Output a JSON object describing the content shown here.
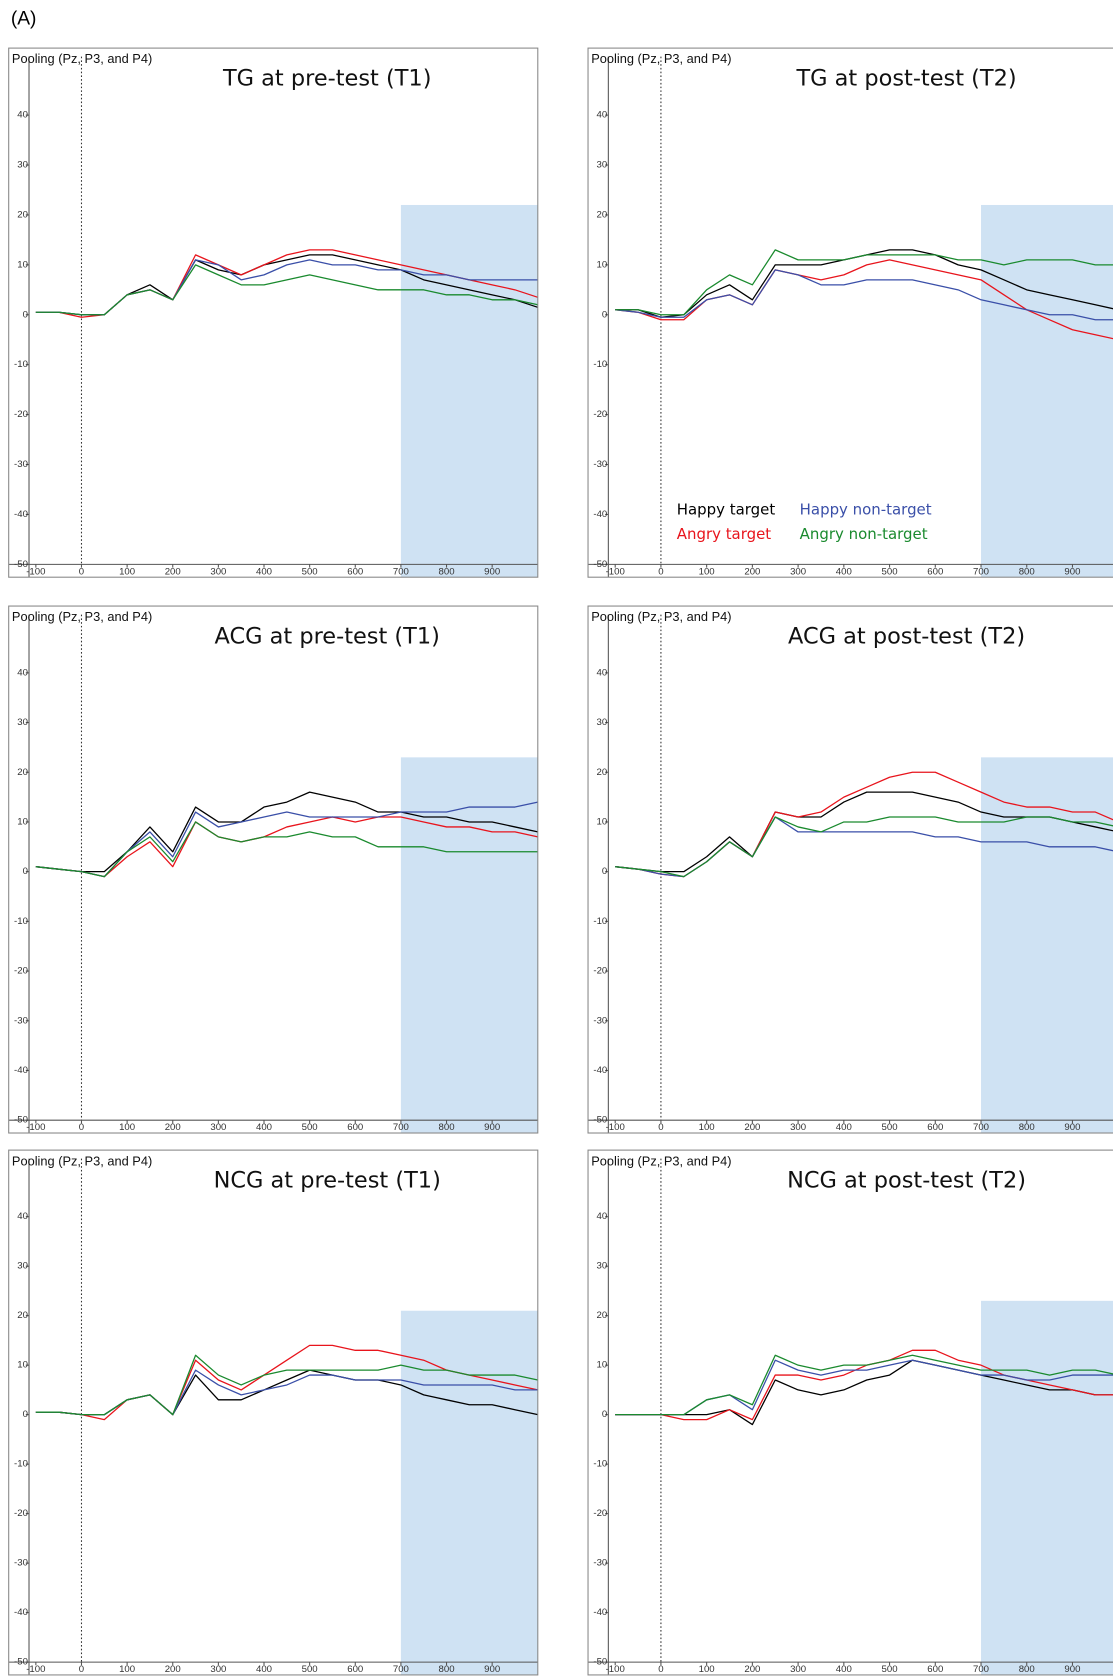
{
  "label": "(A)",
  "chart_data": [
    {
      "type": "line",
      "title": "TG at pre-test (T1)",
      "ylabel": "Pooling (Pz, P3, and P4)",
      "x": [
        -100,
        -50,
        0,
        50,
        100,
        150,
        200,
        250,
        300,
        350,
        400,
        450,
        500,
        550,
        600,
        650,
        700,
        750,
        800,
        850,
        900,
        950,
        1000
      ],
      "xlim": [
        -115,
        1000
      ],
      "ylim": [
        -50,
        50
      ],
      "xticks": [
        -100,
        0,
        100,
        200,
        300,
        400,
        500,
        600,
        700,
        800,
        900
      ],
      "yticks": [
        -50,
        -40,
        -30,
        -20,
        -10,
        0,
        10,
        20,
        30,
        40
      ],
      "shaded_window": {
        "x": [
          700,
          1000
        ],
        "top": 22,
        "color": "#cfe2f3"
      },
      "series": [
        {
          "name": "Happy target",
          "color": "#000000",
          "values": [
            0.5,
            0.5,
            0,
            0,
            4,
            6,
            3,
            11,
            9,
            8,
            10,
            11,
            12,
            12,
            11,
            10,
            9,
            7,
            6,
            5,
            4,
            3,
            1.5
          ]
        },
        {
          "name": "Angry target",
          "color": "#e8141c",
          "values": [
            0.5,
            0.5,
            -0.5,
            0,
            4,
            5,
            3,
            12,
            10,
            8,
            10,
            12,
            13,
            13,
            12,
            11,
            10,
            9,
            8,
            7,
            6,
            5,
            3.5
          ]
        },
        {
          "name": "Happy non-target",
          "color": "#3a4fa8",
          "values": [
            0.5,
            0.5,
            0,
            0,
            4,
            5,
            3,
            11,
            10,
            7,
            8,
            10,
            11,
            10,
            10,
            9,
            9,
            8,
            8,
            7,
            7,
            7,
            7
          ]
        },
        {
          "name": "Angry non-target",
          "color": "#1a8a2e",
          "values": [
            0.5,
            0.5,
            0,
            0,
            4,
            5,
            3,
            10,
            8,
            6,
            6,
            7,
            8,
            7,
            6,
            5,
            5,
            5,
            4,
            4,
            3,
            3,
            2
          ]
        }
      ]
    },
    {
      "type": "line",
      "title": "TG at post-test (T2)",
      "ylabel": "Pooling (Pz, P3, and P4)",
      "x": [
        -100,
        -50,
        0,
        50,
        100,
        150,
        200,
        250,
        300,
        350,
        400,
        450,
        500,
        550,
        600,
        650,
        700,
        750,
        800,
        850,
        900,
        950,
        1000
      ],
      "xlim": [
        -115,
        1000
      ],
      "ylim": [
        -50,
        50
      ],
      "xticks": [
        -100,
        0,
        100,
        200,
        300,
        400,
        500,
        600,
        700,
        800,
        900
      ],
      "yticks": [
        -50,
        -40,
        -30,
        -20,
        -10,
        0,
        10,
        20,
        30,
        40
      ],
      "shaded_window": {
        "x": [
          700,
          1000
        ],
        "top": 22,
        "color": "#cfe2f3"
      },
      "legend": "bottom-left",
      "series": [
        {
          "name": "Happy target",
          "color": "#000000",
          "values": [
            1,
            1,
            -0.5,
            0,
            4,
            6,
            3,
            10,
            10,
            10,
            11,
            12,
            13,
            13,
            12,
            10,
            9,
            7,
            5,
            4,
            3,
            2,
            1
          ]
        },
        {
          "name": "Angry target",
          "color": "#e8141c",
          "values": [
            1,
            0.5,
            -1,
            -1,
            3,
            4,
            2,
            9,
            8,
            7,
            8,
            10,
            11,
            10,
            9,
            8,
            7,
            4,
            1,
            -1,
            -3,
            -4,
            -5
          ]
        },
        {
          "name": "Happy non-target",
          "color": "#3a4fa8",
          "values": [
            1,
            0.5,
            -0.5,
            -0.5,
            3,
            4,
            2,
            9,
            8,
            6,
            6,
            7,
            7,
            7,
            6,
            5,
            3,
            2,
            1,
            0,
            0,
            -1,
            -1
          ]
        },
        {
          "name": "Angry non-target",
          "color": "#1a8a2e",
          "values": [
            1,
            1,
            0,
            0,
            5,
            8,
            6,
            13,
            11,
            11,
            11,
            12,
            12,
            12,
            12,
            11,
            11,
            10,
            11,
            11,
            11,
            10,
            10
          ]
        }
      ]
    },
    {
      "type": "line",
      "title": "ACG at pre-test (T1)",
      "ylabel": "Pooling (Pz, P3, and P4)",
      "x": [
        -100,
        -50,
        0,
        50,
        100,
        150,
        200,
        250,
        300,
        350,
        400,
        450,
        500,
        550,
        600,
        650,
        700,
        750,
        800,
        850,
        900,
        950,
        1000
      ],
      "xlim": [
        -115,
        1000
      ],
      "ylim": [
        -50,
        50
      ],
      "xticks": [
        -100,
        0,
        100,
        200,
        300,
        400,
        500,
        600,
        700,
        800,
        900
      ],
      "yticks": [
        -50,
        -40,
        -30,
        -20,
        -10,
        0,
        10,
        20,
        30,
        40
      ],
      "shaded_window": {
        "x": [
          700,
          1000
        ],
        "top": 23,
        "color": "#cfe2f3"
      },
      "series": [
        {
          "name": "Happy target",
          "color": "#000000",
          "values": [
            1,
            0.5,
            0,
            0,
            4,
            9,
            4,
            13,
            10,
            10,
            13,
            14,
            16,
            15,
            14,
            12,
            12,
            11,
            11,
            10,
            10,
            9,
            8
          ]
        },
        {
          "name": "Angry target",
          "color": "#e8141c",
          "values": [
            1,
            0.5,
            0,
            -1,
            3,
            6,
            1,
            10,
            7,
            6,
            7,
            9,
            10,
            11,
            10,
            11,
            11,
            10,
            9,
            9,
            8,
            8,
            7
          ]
        },
        {
          "name": "Happy non-target",
          "color": "#3a4fa8",
          "values": [
            1,
            0.5,
            0,
            -1,
            4,
            8,
            3,
            12,
            9,
            10,
            11,
            12,
            11,
            11,
            11,
            11,
            12,
            12,
            12,
            13,
            13,
            13,
            14
          ]
        },
        {
          "name": "Angry non-target",
          "color": "#1a8a2e",
          "values": [
            1,
            0.5,
            0,
            -1,
            4,
            7,
            2,
            10,
            7,
            6,
            7,
            7,
            8,
            7,
            7,
            5,
            5,
            5,
            4,
            4,
            4,
            4,
            4
          ]
        }
      ]
    },
    {
      "type": "line",
      "title": "ACG at post-test (T2)",
      "ylabel": "Pooling (Pz, P3, and P4)",
      "x": [
        -100,
        -50,
        0,
        50,
        100,
        150,
        200,
        250,
        300,
        350,
        400,
        450,
        500,
        550,
        600,
        650,
        700,
        750,
        800,
        850,
        900,
        950,
        1000
      ],
      "xlim": [
        -115,
        1000
      ],
      "ylim": [
        -50,
        50
      ],
      "xticks": [
        -100,
        0,
        100,
        200,
        300,
        400,
        500,
        600,
        700,
        800,
        900
      ],
      "yticks": [
        -50,
        -40,
        -30,
        -20,
        -10,
        0,
        10,
        20,
        30,
        40
      ],
      "shaded_window": {
        "x": [
          700,
          1000
        ],
        "top": 23,
        "color": "#cfe2f3"
      },
      "series": [
        {
          "name": "Happy target",
          "color": "#000000",
          "values": [
            1,
            0.5,
            0,
            0,
            3,
            7,
            3,
            12,
            11,
            11,
            14,
            16,
            16,
            16,
            15,
            14,
            12,
            11,
            11,
            11,
            10,
            9,
            8
          ]
        },
        {
          "name": "Angry target",
          "color": "#e8141c",
          "values": [
            1,
            0.5,
            -0.5,
            -1,
            2,
            6,
            3,
            12,
            11,
            12,
            15,
            17,
            19,
            20,
            20,
            18,
            16,
            14,
            13,
            13,
            12,
            12,
            10
          ]
        },
        {
          "name": "Happy non-target",
          "color": "#3a4fa8",
          "values": [
            1,
            0.5,
            -0.5,
            -1,
            2,
            6,
            3,
            11,
            8,
            8,
            8,
            8,
            8,
            8,
            7,
            7,
            6,
            6,
            6,
            5,
            5,
            5,
            4
          ]
        },
        {
          "name": "Angry non-target",
          "color": "#1a8a2e",
          "values": [
            1,
            0.5,
            0,
            -1,
            2,
            6,
            3,
            11,
            9,
            8,
            10,
            10,
            11,
            11,
            11,
            10,
            10,
            10,
            11,
            11,
            10,
            10,
            9
          ]
        }
      ]
    },
    {
      "type": "line",
      "title": "NCG at pre-test (T1)",
      "ylabel": "Pooling (Pz, P3, and P4)",
      "x": [
        -100,
        -50,
        0,
        50,
        100,
        150,
        200,
        250,
        300,
        350,
        400,
        450,
        500,
        550,
        600,
        650,
        700,
        750,
        800,
        850,
        900,
        950,
        1000
      ],
      "xlim": [
        -115,
        1000
      ],
      "ylim": [
        -50,
        50
      ],
      "xticks": [
        -100,
        0,
        100,
        200,
        300,
        400,
        500,
        600,
        700,
        800,
        900
      ],
      "yticks": [
        -50,
        -40,
        -30,
        -20,
        -10,
        0,
        10,
        20,
        30,
        40
      ],
      "shaded_window": {
        "x": [
          700,
          1000
        ],
        "top": 21,
        "color": "#cfe2f3"
      },
      "series": [
        {
          "name": "Happy target",
          "color": "#000000",
          "values": [
            0.5,
            0.5,
            0,
            0,
            3,
            4,
            0,
            8,
            3,
            3,
            5,
            7,
            9,
            8,
            7,
            7,
            6,
            4,
            3,
            2,
            2,
            1,
            0
          ]
        },
        {
          "name": "Angry target",
          "color": "#e8141c",
          "values": [
            0.5,
            0.5,
            0,
            -1,
            3,
            4,
            0,
            11,
            7,
            5,
            8,
            11,
            14,
            14,
            13,
            13,
            12,
            11,
            9,
            8,
            7,
            6,
            5
          ]
        },
        {
          "name": "Happy non-target",
          "color": "#3a4fa8",
          "values": [
            0.5,
            0.5,
            0,
            0,
            3,
            4,
            0,
            9,
            6,
            4,
            5,
            6,
            8,
            8,
            7,
            7,
            7,
            6,
            6,
            6,
            6,
            5,
            5
          ]
        },
        {
          "name": "Angry non-target",
          "color": "#1a8a2e",
          "values": [
            0.5,
            0.5,
            0,
            0,
            3,
            4,
            0,
            12,
            8,
            6,
            8,
            9,
            9,
            9,
            9,
            9,
            10,
            9,
            9,
            8,
            8,
            8,
            7
          ]
        }
      ]
    },
    {
      "type": "line",
      "title": "NCG at post-test (T2)",
      "ylabel": "Pooling (Pz, P3, and P4)",
      "x": [
        -100,
        -50,
        0,
        50,
        100,
        150,
        200,
        250,
        300,
        350,
        400,
        450,
        500,
        550,
        600,
        650,
        700,
        750,
        800,
        850,
        900,
        950,
        1000
      ],
      "xlim": [
        -115,
        1000
      ],
      "ylim": [
        -50,
        50
      ],
      "xticks": [
        -100,
        0,
        100,
        200,
        300,
        400,
        500,
        600,
        700,
        800,
        900
      ],
      "yticks": [
        -50,
        -40,
        -30,
        -20,
        -10,
        0,
        10,
        20,
        30,
        40
      ],
      "shaded_window": {
        "x": [
          700,
          1000
        ],
        "top": 23,
        "color": "#cfe2f3"
      },
      "series": [
        {
          "name": "Happy target",
          "color": "#000000",
          "values": [
            0,
            0,
            0,
            0,
            0,
            1,
            -2,
            7,
            5,
            4,
            5,
            7,
            8,
            11,
            10,
            9,
            8,
            7,
            6,
            5,
            5,
            4,
            4
          ]
        },
        {
          "name": "Angry target",
          "color": "#e8141c",
          "values": [
            0,
            0,
            0,
            -1,
            -1,
            1,
            -1,
            8,
            8,
            7,
            8,
            10,
            11,
            13,
            13,
            11,
            10,
            8,
            7,
            6,
            5,
            4,
            4
          ]
        },
        {
          "name": "Happy non-target",
          "color": "#3a4fa8",
          "values": [
            0,
            0,
            0,
            0,
            3,
            4,
            1,
            11,
            9,
            8,
            9,
            9,
            10,
            11,
            10,
            9,
            8,
            8,
            7,
            7,
            8,
            8,
            8
          ]
        },
        {
          "name": "Angry non-target",
          "color": "#1a8a2e",
          "values": [
            0,
            0,
            0,
            0,
            3,
            4,
            2,
            12,
            10,
            9,
            10,
            10,
            11,
            12,
            11,
            10,
            9,
            9,
            9,
            8,
            9,
            9,
            8
          ]
        }
      ]
    }
  ]
}
